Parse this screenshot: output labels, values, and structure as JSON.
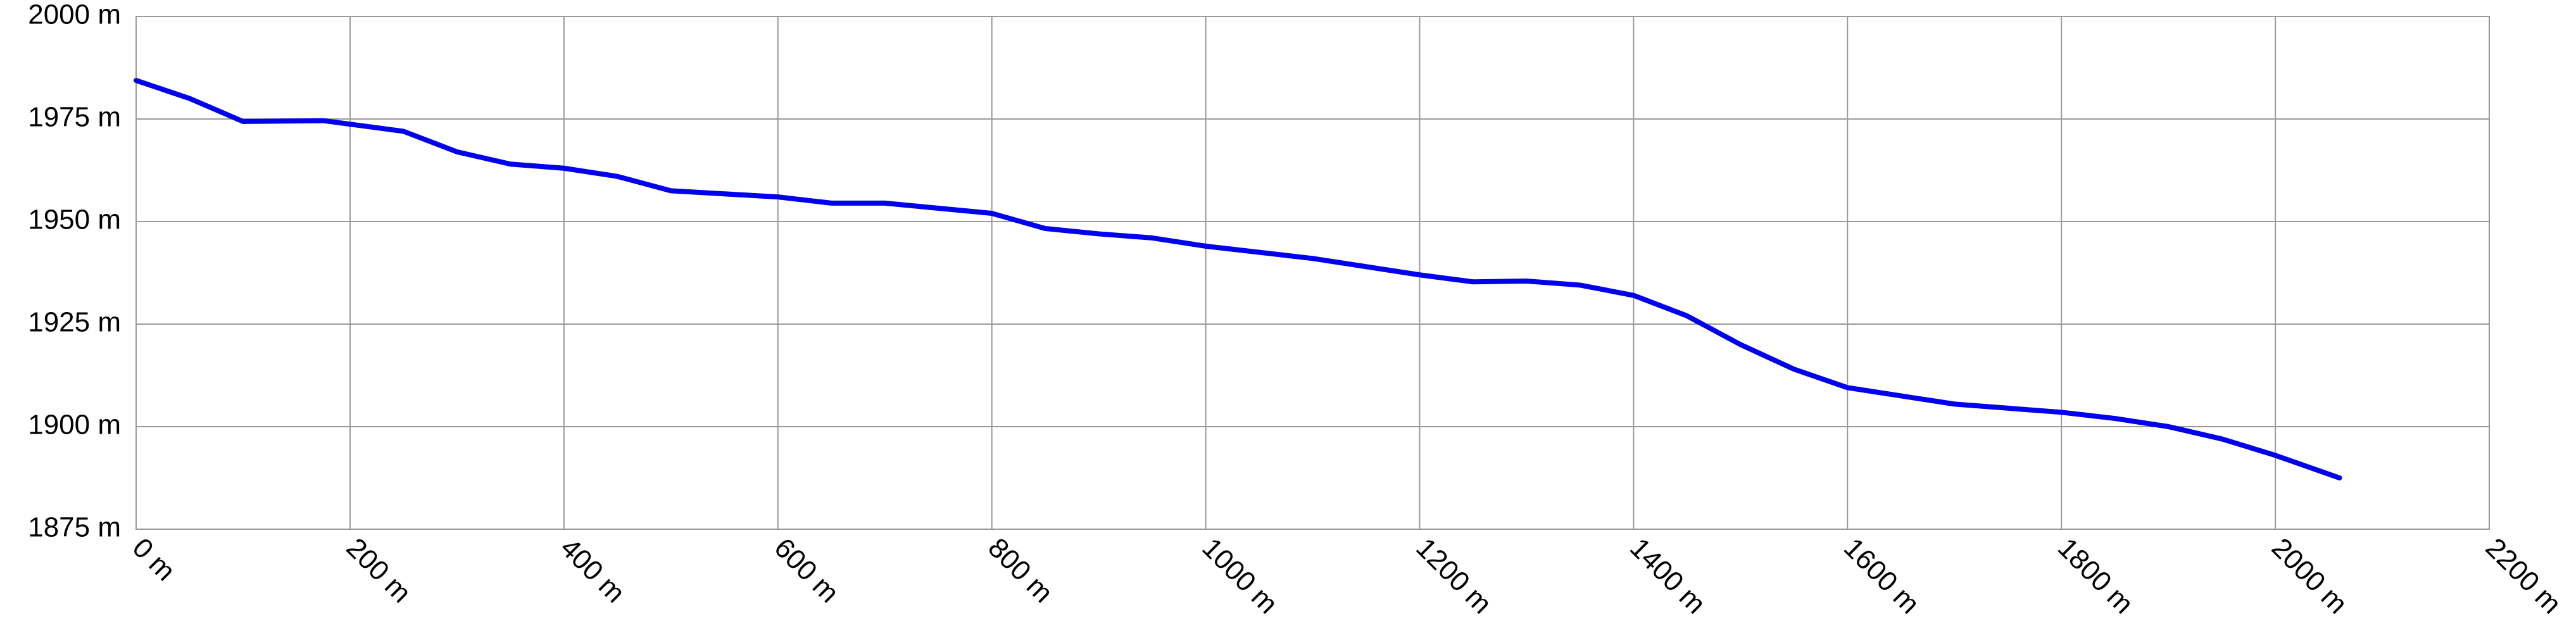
{
  "chart_data": {
    "type": "line",
    "x": [
      0,
      50,
      100,
      175,
      250,
      300,
      350,
      400,
      450,
      500,
      600,
      650,
      700,
      800,
      850,
      900,
      950,
      1000,
      1100,
      1200,
      1250,
      1300,
      1350,
      1400,
      1450,
      1500,
      1550,
      1600,
      1700,
      1800,
      1850,
      1900,
      1950,
      2000,
      2060
    ],
    "series": [
      {
        "color": "#0000ee",
        "values": [
          1984.4,
          1980,
          1974.4,
          1974.6,
          1972,
          1967,
          1964,
          1963,
          1961,
          1957.5,
          1956,
          1954.5,
          1954.5,
          1952,
          1948.3,
          1947,
          1946,
          1944,
          1941,
          1937,
          1935.3,
          1935.5,
          1934.5,
          1932,
          1927,
          1920,
          1914,
          1909.5,
          1905.5,
          1903.5,
          1902,
          1900,
          1897,
          1893,
          1887.5
        ]
      }
    ],
    "xlim": [
      0,
      2200
    ],
    "xticks": [
      {
        "value": 0,
        "label": "0 m"
      },
      {
        "value": 200,
        "label": "200 m"
      },
      {
        "value": 400,
        "label": "400 m"
      },
      {
        "value": 600,
        "label": "600 m"
      },
      {
        "value": 800,
        "label": "800 m"
      },
      {
        "value": 1000,
        "label": "1000 m"
      },
      {
        "value": 1200,
        "label": "1200 m"
      },
      {
        "value": 1400,
        "label": "1400 m"
      },
      {
        "value": 1600,
        "label": "1600 m"
      },
      {
        "value": 1800,
        "label": "1800 m"
      },
      {
        "value": 2000,
        "label": "2000 m"
      },
      {
        "value": 2200,
        "label": "2200 m"
      }
    ],
    "ylim": [
      1875,
      2000
    ],
    "yticks": [
      {
        "value": 1875,
        "label": "1875 m"
      },
      {
        "value": 1900,
        "label": "1900 m"
      },
      {
        "value": 1925,
        "label": "1925 m"
      },
      {
        "value": 1950,
        "label": "1950 m"
      },
      {
        "value": 1975,
        "label": "1975 m"
      },
      {
        "value": 2000,
        "label": "2000 m"
      }
    ],
    "grid": true
  }
}
